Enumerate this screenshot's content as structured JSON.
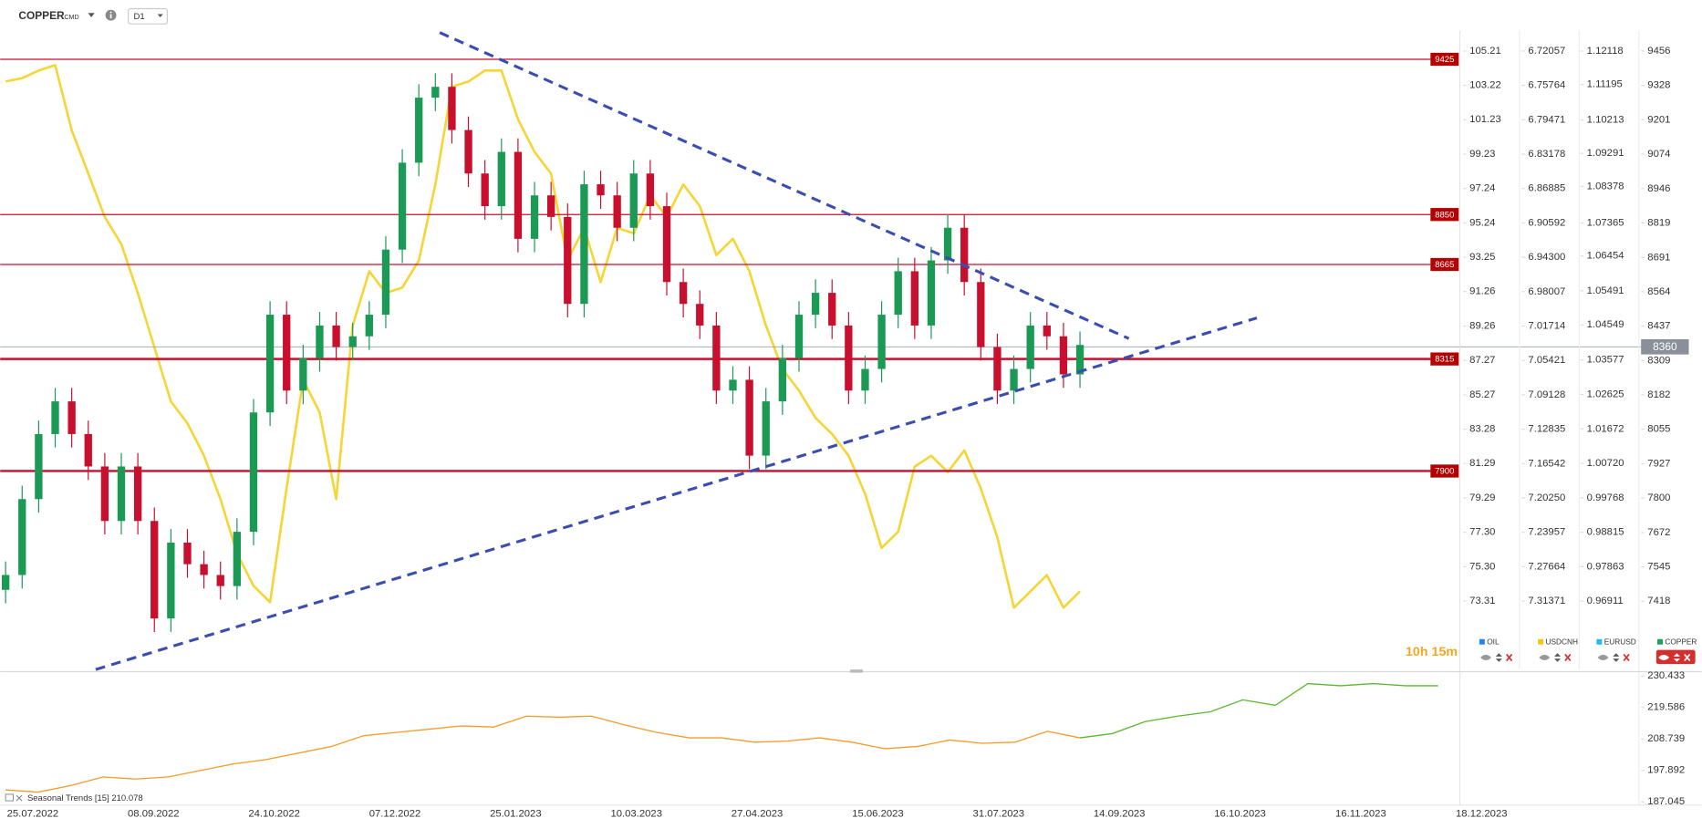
{
  "header": {
    "symbol": "COPPER",
    "market": "CMD",
    "interval": "D1"
  },
  "timer": "10h 15m",
  "chart_data": {
    "type": "candlestick",
    "x_tick_labels": [
      "25.07.2022",
      "08.09.2022",
      "24.10.2022",
      "07.12.2022",
      "25.01.2023",
      "10.03.2023",
      "27.04.2023",
      "15.06.2023",
      "31.07.2023",
      "14.09.2023",
      "16.10.2023",
      "16.11.2023",
      "18.12.2023"
    ],
    "axes": [
      {
        "name": "OIL",
        "color": "#1e88e5",
        "ylim": [
          69.34,
          106.41
        ],
        "yticks": [
          105.21,
          103.22,
          101.23,
          99.23,
          97.24,
          95.24,
          93.25,
          91.26,
          89.26,
          87.27,
          85.27,
          83.28,
          81.29,
          79.29,
          {
            "value": 77.3,
            "label": "77.30"
          },
          {
            "value": 75.3,
            "label": "75.30"
          },
          73.31
        ]
      },
      {
        "name": "USDCNH",
        "color": "#f5c518",
        "ylim": [
          7.3875,
          6.6983
        ],
        "yticks": [
          6.72057,
          6.75764,
          6.79471,
          6.83178,
          6.86885,
          6.90592,
          {
            "value": 6.943,
            "label": "6.94300"
          },
          6.98007,
          7.01714,
          7.05421,
          7.09128,
          7.12835,
          7.16542,
          {
            "value": 7.2025,
            "label": "7.20250"
          },
          7.23957,
          7.27664,
          7.31371
        ]
      },
      {
        "name": "EURUSD",
        "color": "#29b6f6",
        "ylim": [
          0.9502,
          1.1269
        ],
        "yticks": [
          1.12118,
          1.11195,
          1.10213,
          1.09291,
          1.08378,
          1.07365,
          1.06454,
          1.05491,
          1.04549,
          1.03577,
          1.02625,
          1.01672,
          {
            "value": 1.0072,
            "label": "1.00720"
          },
          0.99768,
          0.98815,
          0.97863,
          0.96911
        ]
      },
      {
        "name": "COPPER",
        "color": "#1aa35c",
        "ylim": [
          7165,
          9532
        ],
        "yticks": [
          9456,
          9328,
          9201,
          9074,
          8946,
          8819,
          8691,
          8564,
          8437,
          8309,
          8182,
          8055,
          7927,
          7800,
          7672,
          7545,
          7418
        ]
      }
    ],
    "series": [
      {
        "type": "candlestick",
        "axis": 3,
        "color_up": "#1a9a55",
        "color_down": "#c8102e",
        "open": [
          7460,
          7515,
          7796,
          8037,
          8158,
          8037,
          7917,
          7715,
          7917,
          7715,
          7354,
          7635,
          7555,
          7515,
          7474,
          7675,
          8117,
          8479,
          8198,
          8318,
          8439,
          8359,
          8399,
          8479,
          8720,
          9042,
          9283,
          9323,
          9163,
          9002,
          8881,
          9082,
          8760,
          8921,
          8841,
          8519,
          8962,
          8921,
          8801,
          9002,
          8881,
          8600,
          8519,
          8439,
          8198,
          8238,
          7957,
          8158,
          8318,
          8479,
          8560,
          8439,
          8198,
          8278,
          8479,
          8640,
          8439,
          8680,
          8801,
          8600,
          8359,
          8198,
          8278,
          8439,
          8399,
          8258
        ],
        "high": [
          7565,
          7846,
          8087,
          8208,
          8208,
          8087,
          7967,
          7967,
          7967,
          7765,
          7685,
          7685,
          7605,
          7565,
          7725,
          8167,
          8529,
          8529,
          8368,
          8489,
          8489,
          8449,
          8529,
          8770,
          9092,
          9333,
          9373,
          9373,
          9213,
          9052,
          9132,
          9132,
          8971,
          8971,
          8891,
          9012,
          9012,
          8971,
          9052,
          9052,
          8931,
          8650,
          8569,
          8489,
          8288,
          8288,
          8208,
          8368,
          8529,
          8610,
          8610,
          8489,
          8328,
          8529,
          8690,
          8690,
          8730,
          8851,
          8851,
          8650,
          8409,
          8328,
          8489,
          8489,
          8449,
          8417
        ],
        "low": [
          7410,
          7465,
          7746,
          7987,
          7987,
          7867,
          7665,
          7665,
          7665,
          7304,
          7304,
          7505,
          7465,
          7424,
          7424,
          7625,
          8067,
          8148,
          8148,
          8268,
          8309,
          8309,
          8349,
          8429,
          8670,
          8992,
          9233,
          9113,
          8952,
          8831,
          8831,
          8710,
          8710,
          8791,
          8469,
          8469,
          8871,
          8751,
          8751,
          8831,
          8550,
          8469,
          8389,
          8148,
          8148,
          7907,
          7907,
          8108,
          8268,
          8429,
          8389,
          8148,
          8148,
          8228,
          8429,
          8389,
          8389,
          8630,
          8550,
          8309,
          8148,
          8148,
          8228,
          8349,
          8208,
          8208
        ],
        "close": [
          7515,
          7796,
          8037,
          8158,
          8037,
          7917,
          7715,
          7917,
          7715,
          7354,
          7635,
          7555,
          7515,
          7474,
          7675,
          8117,
          8479,
          8198,
          8318,
          8439,
          8359,
          8399,
          8479,
          8720,
          9042,
          9283,
          9323,
          9163,
          9002,
          8881,
          9082,
          8760,
          8921,
          8841,
          8519,
          8962,
          8921,
          8801,
          9002,
          8881,
          8600,
          8519,
          8439,
          8198,
          8238,
          7957,
          8158,
          8318,
          8479,
          8560,
          8439,
          8198,
          8278,
          8479,
          8640,
          8439,
          8680,
          8801,
          8600,
          8359,
          8198,
          8278,
          8439,
          8399,
          8258,
          8367
        ]
      },
      {
        "type": "line",
        "axis": 1,
        "color": "#f5d020",
        "values": [
          6.7534,
          6.7498,
          6.7416,
          6.7358,
          6.806,
          6.8528,
          6.8996,
          6.9288,
          6.9815,
          7.04,
          7.0985,
          7.1219,
          7.157,
          7.2038,
          7.2623,
          7.2974,
          7.3149,
          7.1921,
          7.0751,
          7.1102,
          7.2038,
          7.0166,
          6.9581,
          6.9815,
          6.9757,
          6.9464,
          6.8645,
          6.7592,
          6.7534,
          6.7416,
          6.7416,
          6.7943,
          6.8294,
          6.8528,
          6.9464,
          6.9113,
          6.9698,
          6.9113,
          6.9172,
          6.8762,
          6.8996,
          6.8645,
          6.8879,
          6.9406,
          6.923,
          6.9581,
          7.0166,
          7.0634,
          7.0868,
          7.1161,
          7.1336,
          7.157,
          7.198,
          7.2565,
          7.2389,
          7.1687,
          7.157,
          7.1746,
          7.1512,
          7.1921,
          7.2448,
          7.3208,
          7.3033,
          7.2857,
          7.3208,
          7.3033
        ]
      }
    ],
    "levels": [
      {
        "value": 9425,
        "emphasis": false
      },
      {
        "value": 8850,
        "emphasis": false
      },
      {
        "value": 8665,
        "emphasis": false
      },
      {
        "value": 8315,
        "emphasis": true
      },
      {
        "value": 7900,
        "emphasis": true
      }
    ],
    "level_color": "#c8102e",
    "current_price": 8360,
    "lower_pane": {
      "type": "line",
      "label": "Seasonal Trends [15] 210.078",
      "ylim": [
        185.923,
        231.555
      ],
      "yticks": [
        230.433,
        219.586,
        208.739,
        197.892,
        187.045
      ],
      "series": [
        {
          "color": "#f39c2a",
          "values": [
            191.16,
            190.42,
            192.66,
            195.65,
            194.9,
            195.65,
            197.9,
            200.14,
            201.64,
            203.88,
            206.12,
            209.86,
            210.99,
            212.11,
            213.23,
            212.86,
            216.6,
            216.22,
            216.6,
            213.6,
            210.99,
            209.11,
            209.11,
            207.62,
            207.99,
            209.11,
            207.62,
            205.37,
            206.12,
            208.37,
            207.25,
            207.62,
            211.36,
            209.11,
            null,
            null,
            null,
            null,
            null,
            null,
            null,
            null,
            null,
            null,
            null
          ]
        },
        {
          "color": "#5cb82e",
          "values": [
            null,
            null,
            null,
            null,
            null,
            null,
            null,
            null,
            null,
            null,
            null,
            null,
            null,
            null,
            null,
            null,
            null,
            null,
            null,
            null,
            null,
            null,
            null,
            null,
            null,
            null,
            null,
            null,
            null,
            null,
            null,
            null,
            null,
            209.11,
            210.61,
            214.72,
            216.6,
            218.09,
            222.2,
            220.34,
            227.82,
            227.07,
            227.82,
            227.07,
            227.07
          ]
        }
      ]
    }
  }
}
